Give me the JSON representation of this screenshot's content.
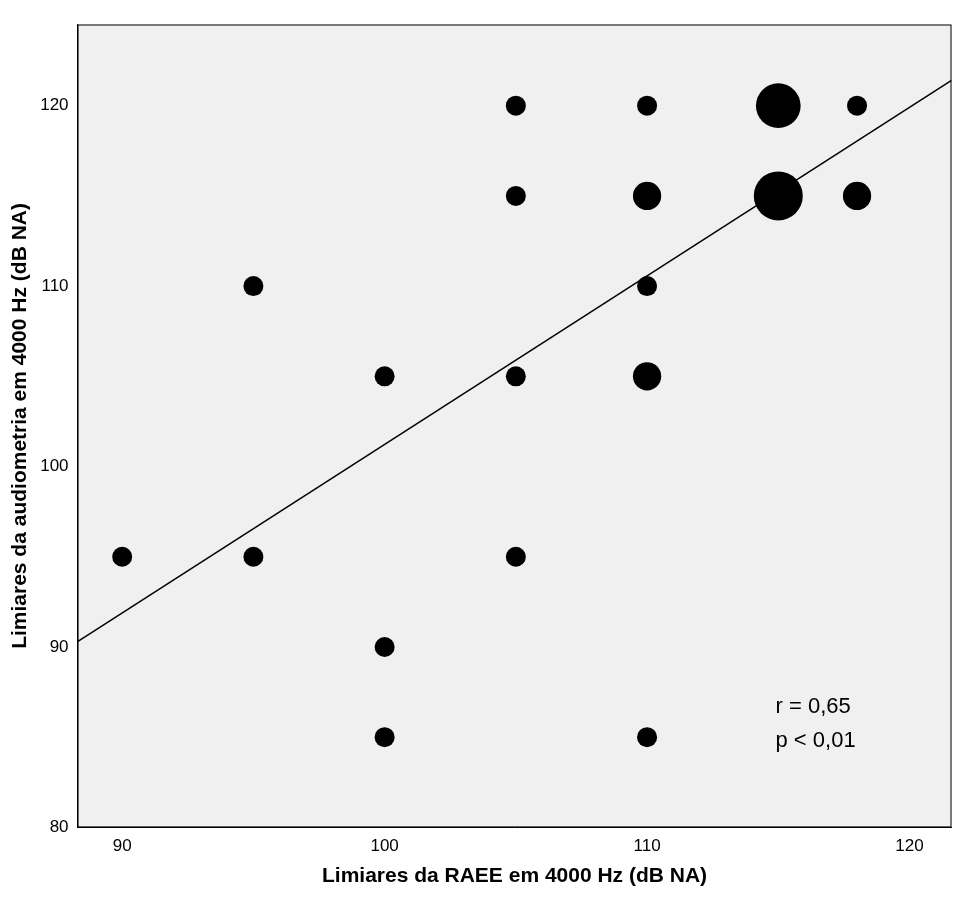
{
  "chart_data": {
    "type": "scatter",
    "x_label": "Limiares da RAEE em 4000 Hz (dB NA)",
    "y_label": "Limiares da audiometria em 4000 Hz (dB NA)",
    "x": [
      90,
      95,
      95,
      100,
      100,
      100,
      105,
      105,
      105,
      105,
      110,
      110,
      110,
      110,
      110,
      115,
      115,
      118,
      118
    ],
    "values": [
      95,
      110,
      95,
      105,
      90,
      85,
      120,
      115,
      105,
      95,
      120,
      115,
      110,
      105,
      85,
      120,
      115,
      120,
      115
    ],
    "sizes": [
      1,
      1,
      1,
      1,
      1,
      1,
      1,
      1,
      1,
      1,
      1,
      2,
      1,
      2,
      1,
      5,
      6,
      1,
      2
    ],
    "color": "#000000",
    "fit_line": {
      "x": [
        88.3,
        121.6
      ],
      "y": [
        90.3,
        121.4
      ]
    },
    "annotations": [
      "r = 0,65",
      "p < 0,01"
    ],
    "xlim": [
      88.3,
      121.6
    ],
    "xticks": [
      90,
      100,
      110,
      120
    ],
    "ylim": [
      80,
      124.5
    ],
    "yticks": [
      80,
      90,
      100,
      110,
      120
    ],
    "grid": false
  }
}
